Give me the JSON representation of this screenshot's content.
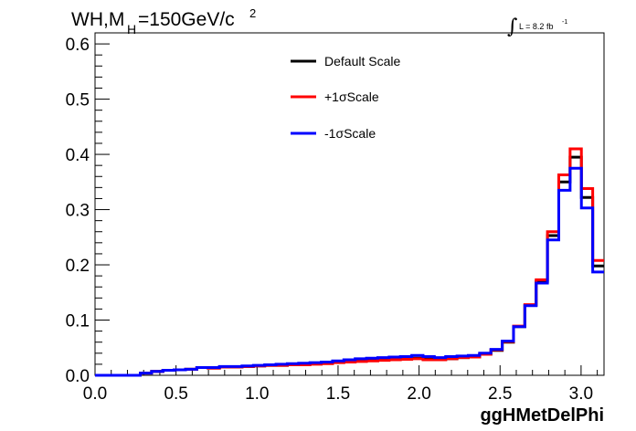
{
  "chart_data": {
    "type": "line",
    "title": {
      "main": "WH,M",
      "subscript": "H",
      "rest": "=150GeV/c",
      "superscript": "2"
    },
    "luminosity": {
      "integral_symbol": "∫",
      "text": "L = 8.2 fb",
      "superscript": "-1"
    },
    "xlabel": "ggHMetDelPhi",
    "ylabel": "",
    "xlim": [
      0.0,
      3.1416
    ],
    "ylim": [
      0.0,
      0.62
    ],
    "x_tick_labels": [
      "0.0",
      "0.5",
      "1.0",
      "1.5",
      "2.0",
      "2.5",
      "3.0"
    ],
    "y_tick_labels": [
      "0.0",
      "0.1",
      "0.2",
      "0.3",
      "0.4",
      "0.5",
      "0.6"
    ],
    "x_ticks": [
      0.0,
      0.5,
      1.0,
      1.5,
      2.0,
      2.5,
      3.0
    ],
    "y_ticks": [
      0.0,
      0.1,
      0.2,
      0.3,
      0.4,
      0.5,
      0.6
    ],
    "legend_position": "top-center",
    "grid": false,
    "bins": {
      "count": 45,
      "low": 0.0,
      "high": 3.1416
    },
    "series": [
      {
        "name": "Default Scale",
        "color": "#000000",
        "values": [
          0.0,
          0.0,
          0.0,
          0.0,
          0.004,
          0.007,
          0.009,
          0.01,
          0.011,
          0.014,
          0.013,
          0.015,
          0.015,
          0.016,
          0.017,
          0.018,
          0.018,
          0.019,
          0.02,
          0.021,
          0.022,
          0.024,
          0.025,
          0.026,
          0.027,
          0.028,
          0.029,
          0.03,
          0.031,
          0.029,
          0.028,
          0.03,
          0.032,
          0.033,
          0.038,
          0.045,
          0.06,
          0.088,
          0.127,
          0.17,
          0.253,
          0.35,
          0.395,
          0.322,
          0.198
        ]
      },
      {
        "name": "+1σScale",
        "color": "#ff0000",
        "values": [
          0.0,
          0.0,
          0.0,
          0.0,
          0.004,
          0.007,
          0.009,
          0.01,
          0.011,
          0.014,
          0.013,
          0.015,
          0.015,
          0.016,
          0.017,
          0.018,
          0.018,
          0.019,
          0.019,
          0.02,
          0.021,
          0.023,
          0.024,
          0.025,
          0.026,
          0.027,
          0.028,
          0.029,
          0.03,
          0.028,
          0.028,
          0.03,
          0.032,
          0.033,
          0.038,
          0.046,
          0.061,
          0.089,
          0.128,
          0.173,
          0.26,
          0.363,
          0.41,
          0.338,
          0.208
        ]
      },
      {
        "name": "-1σScale",
        "color": "#0000ff",
        "values": [
          0.0,
          0.0,
          0.0,
          0.0,
          0.004,
          0.007,
          0.009,
          0.01,
          0.011,
          0.014,
          0.014,
          0.016,
          0.016,
          0.017,
          0.018,
          0.019,
          0.02,
          0.021,
          0.022,
          0.023,
          0.024,
          0.026,
          0.028,
          0.03,
          0.031,
          0.032,
          0.033,
          0.034,
          0.036,
          0.034,
          0.032,
          0.034,
          0.035,
          0.036,
          0.04,
          0.047,
          0.062,
          0.088,
          0.126,
          0.167,
          0.245,
          0.335,
          0.375,
          0.303,
          0.187
        ]
      }
    ]
  }
}
